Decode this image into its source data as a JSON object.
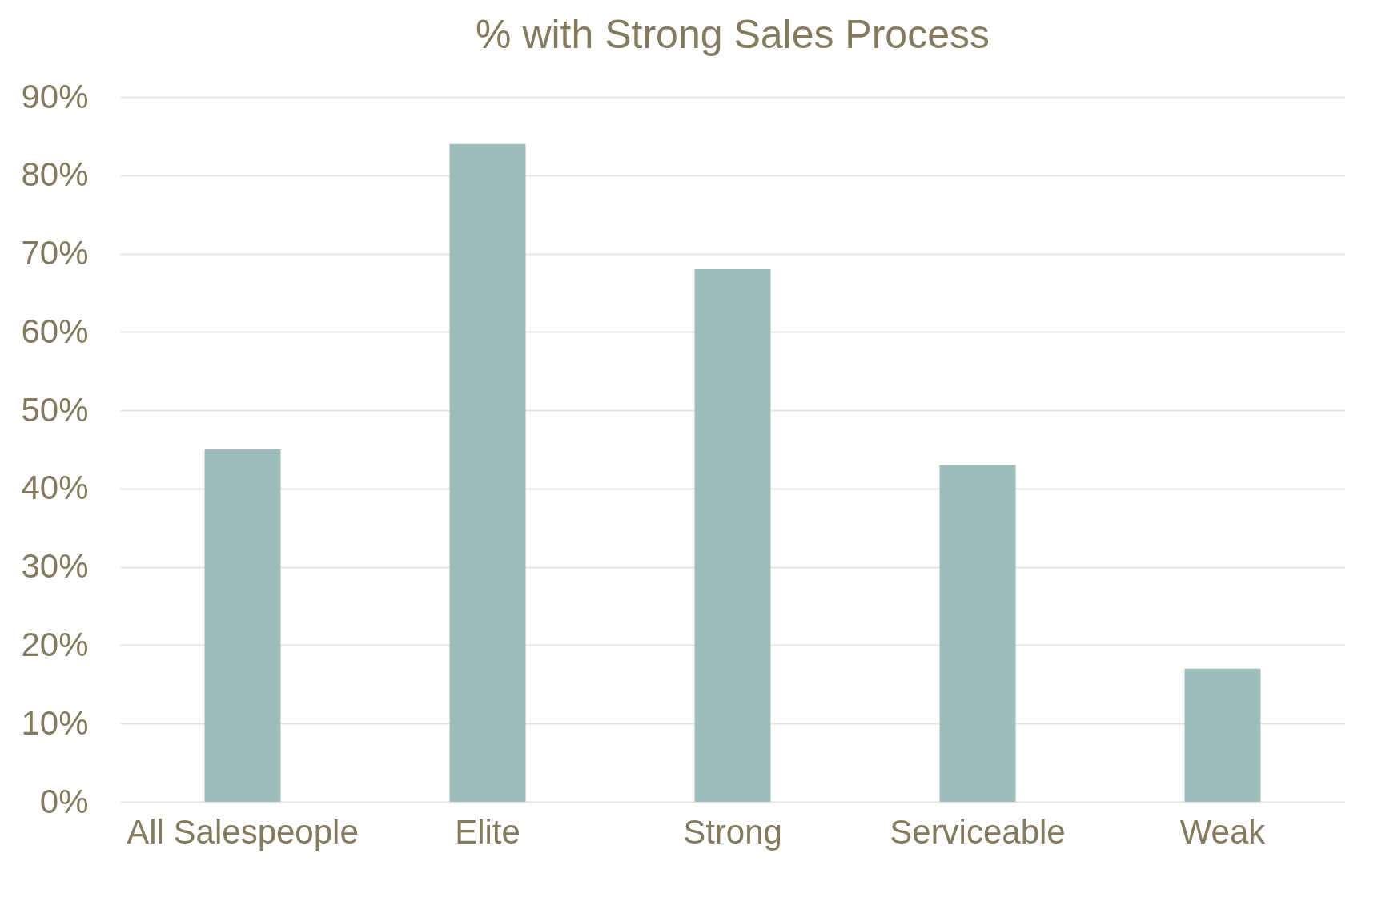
{
  "chart_data": {
    "type": "bar",
    "title": "% with Strong Sales Process",
    "categories": [
      "All Salespeople",
      "Elite",
      "Strong",
      "Serviceable",
      "Weak"
    ],
    "values": [
      45,
      84,
      68,
      43,
      17
    ],
    "color": "#9dbdbb",
    "ylim": [
      0,
      90
    ],
    "yticks": [
      {
        "value": 0,
        "label": "0%"
      },
      {
        "value": 10,
        "label": "10%"
      },
      {
        "value": 20,
        "label": "20%"
      },
      {
        "value": 30,
        "label": "30%"
      },
      {
        "value": 40,
        "label": "40%"
      },
      {
        "value": 50,
        "label": "50%"
      },
      {
        "value": 60,
        "label": "60%"
      },
      {
        "value": 70,
        "label": "70%"
      },
      {
        "value": 80,
        "label": "80%"
      },
      {
        "value": 90,
        "label": "90%"
      }
    ],
    "grid": "y"
  }
}
